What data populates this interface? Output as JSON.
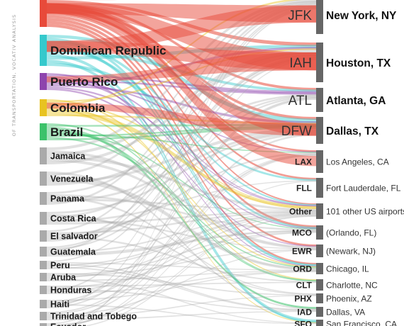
{
  "credit": "OF TRANSPORTATION, VOCATIV ANALYSIS",
  "origins": [
    {
      "label": "",
      "color": "#e84a3a"
    },
    {
      "label": "Dominican Republic",
      "color": "#35c9cc"
    },
    {
      "label": "Puerto Rico",
      "color": "#8e44ad"
    },
    {
      "label": "Colombia",
      "color": "#e8c320"
    },
    {
      "label": "Brazil",
      "color": "#3cc26a"
    },
    {
      "label": "Jamaica",
      "color": "#aaaaaa"
    },
    {
      "label": "Venezuela",
      "color": "#aaaaaa"
    },
    {
      "label": "Panama",
      "color": "#aaaaaa"
    },
    {
      "label": "Costa Rica",
      "color": "#aaaaaa"
    },
    {
      "label": "El salvador",
      "color": "#aaaaaa"
    },
    {
      "label": "Guatemala",
      "color": "#aaaaaa"
    },
    {
      "label": "Peru",
      "color": "#aaaaaa"
    },
    {
      "label": "Aruba",
      "color": "#aaaaaa"
    },
    {
      "label": "Honduras",
      "color": "#aaaaaa"
    },
    {
      "label": "Haiti",
      "color": "#aaaaaa"
    },
    {
      "label": "Trinidad and Tobego",
      "color": "#aaaaaa"
    },
    {
      "label": "Ecuador",
      "color": "#aaaaaa"
    }
  ],
  "destinations": [
    {
      "code": "JFK",
      "city": "New York, NY"
    },
    {
      "code": "IAH",
      "city": "Houston, TX"
    },
    {
      "code": "ATL",
      "city": "Atlanta, GA"
    },
    {
      "code": "DFW",
      "city": "Dallas, TX"
    },
    {
      "code": "LAX",
      "city": "Los Angeles, CA"
    },
    {
      "code": "FLL",
      "city": "Fort Lauderdale, FL"
    },
    {
      "code": "Other",
      "city": "101 other US airports"
    },
    {
      "code": "MCO",
      "city": "(Orlando, FL)"
    },
    {
      "code": "EWR",
      "city": "(Newark, NJ)"
    },
    {
      "code": "ORD",
      "city": "Chicago, IL"
    },
    {
      "code": "CLT",
      "city": "Charlotte, NC"
    },
    {
      "code": "PHX",
      "city": "Phoenix, AZ"
    },
    {
      "code": "IAD",
      "city": "Dallas, VA"
    },
    {
      "code": "SFO",
      "city": "San Francisco, CA"
    }
  ],
  "colors": {
    "red": "#e84a3a",
    "teal": "#35c9cc",
    "purple": "#8e44ad",
    "yellow": "#e8c320",
    "green": "#3cc26a",
    "gray": "#aaaaaa",
    "dest_bar": "#666666"
  }
}
